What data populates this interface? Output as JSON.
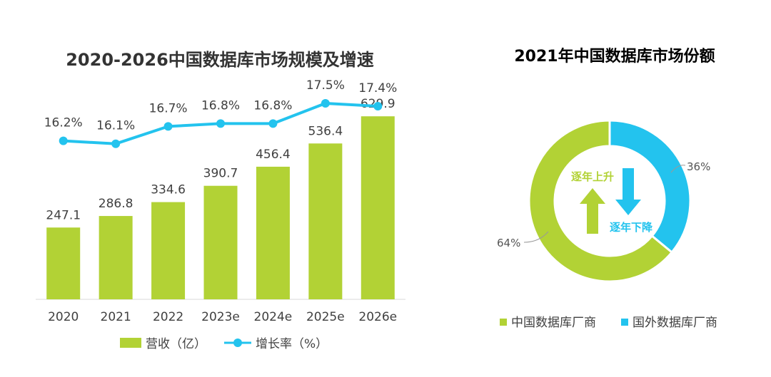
{
  "chart_data": [
    {
      "type": "bar+line",
      "title": "2020-2026中国数据库市场规模及增速",
      "categories": [
        "2020",
        "2021",
        "2022",
        "2023e",
        "2024e",
        "2025e",
        "2026e"
      ],
      "series": [
        {
          "name": "营收（亿）",
          "type": "bar",
          "values": [
            247.1,
            286.8,
            334.6,
            390.7,
            456.4,
            536.4,
            629.9
          ],
          "labels": [
            "247.1",
            "286.8",
            "334.6",
            "390.7",
            "456.4",
            "536.4",
            "629.9"
          ]
        },
        {
          "name": "增长率（%）",
          "type": "line",
          "values": [
            16.2,
            16.1,
            16.7,
            16.8,
            16.8,
            17.5,
            17.4
          ],
          "labels": [
            "16.2%",
            "16.1%",
            "16.7%",
            "16.8%",
            "16.8%",
            "17.5%",
            "17.4%"
          ]
        }
      ],
      "legend": [
        "营收（亿）",
        "增长率（%）"
      ],
      "ylim_bar": [
        0,
        650
      ],
      "ylim_line": [
        15.5,
        17.5
      ],
      "colors": {
        "bar": "#b2d235",
        "line": "#23c3ee"
      }
    },
    {
      "type": "pie",
      "title": "2021年中国数据库市场份额",
      "slices": [
        {
          "name": "中国数据库厂商",
          "value": 64,
          "label": "64%",
          "color": "#b2d235"
        },
        {
          "name": "国外数据库厂商",
          "value": 36,
          "label": "36%",
          "color": "#23c3ee"
        }
      ],
      "annotations": {
        "up_text": "逐年上升",
        "down_text": "逐年下降"
      }
    }
  ]
}
